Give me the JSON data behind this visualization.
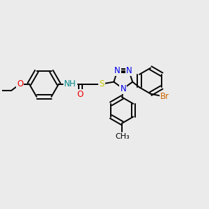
{
  "background_color": "#ebebeb",
  "bond_color": "#000000",
  "bond_width": 1.4,
  "atom_colors": {
    "N": "#0000ee",
    "O": "#ee0000",
    "S": "#cccc00",
    "Br": "#cc6600",
    "H": "#008888",
    "C": "#000000"
  },
  "font_size": 8.5,
  "fig_size": [
    3.0,
    3.0
  ],
  "dpi": 100
}
